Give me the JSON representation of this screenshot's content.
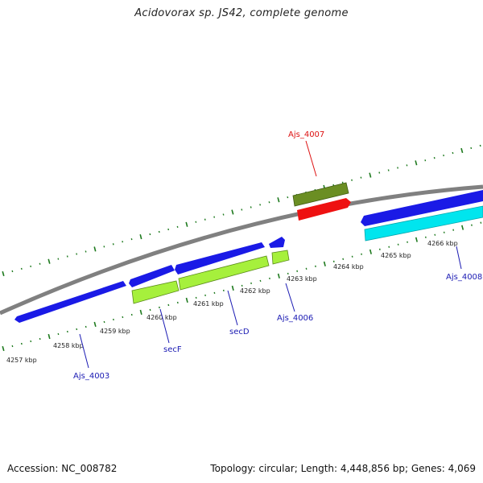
{
  "title": "Acidovorax sp. JS42, complete genome",
  "footer": {
    "accession": "Accession: NC_008782",
    "summary": "Topology: circular; Length: 4,448,856 bp; Genes: 4,069"
  },
  "colors": {
    "backbone": "#808080",
    "tick": "#1e7a1e",
    "forward_gene": "#1a1ae6",
    "reverse_gene": "#a6f03c",
    "olive_feature": "#6b8e23",
    "red_feature": "#ee1111",
    "cyan_feature": "#00e5ee",
    "red_label": "#dd1111",
    "blue_label": "#1a1ab3"
  },
  "scale": {
    "unit": "kbp",
    "tick_labels": [
      "4257 kbp",
      "4258 kbp",
      "4259 kbp",
      "4260 kbp",
      "4261 kbp",
      "4262 kbp",
      "4263 kbp",
      "4264 kbp",
      "4265 kbp",
      "4266 kbp"
    ]
  },
  "gene_labels": [
    {
      "text": "Ajs_4007",
      "color": "red"
    },
    {
      "text": "Ajs_4008",
      "color": "blue"
    },
    {
      "text": "Ajs_4006",
      "color": "blue"
    },
    {
      "text": "secD",
      "color": "blue"
    },
    {
      "text": "secF",
      "color": "blue"
    },
    {
      "text": "Ajs_4003",
      "color": "blue"
    }
  ]
}
